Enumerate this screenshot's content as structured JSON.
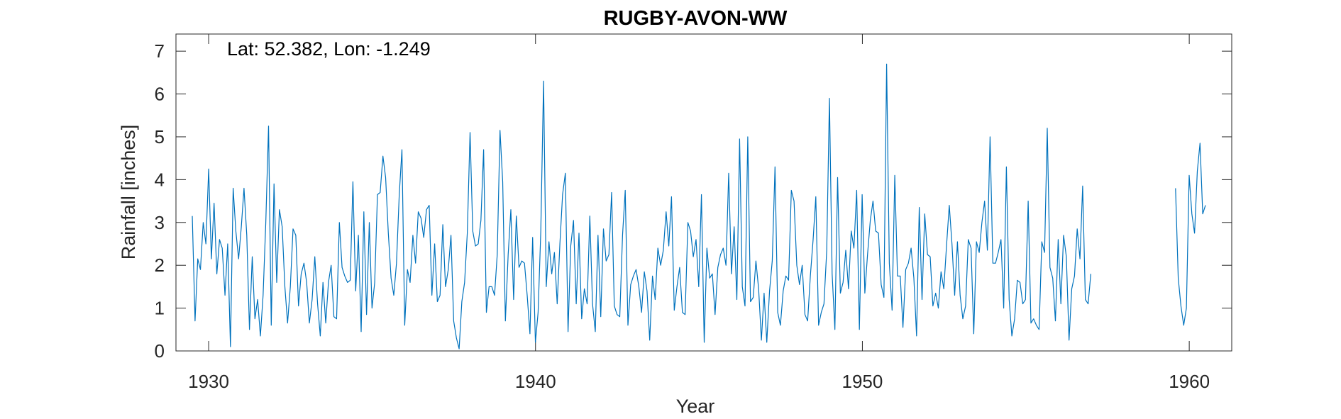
{
  "chart_data": {
    "type": "line",
    "title": "RUGBY-AVON-WW",
    "annotation": "Lat: 52.382, Lon: -1.249",
    "xlabel": "Year",
    "ylabel": "Rainfall [inches]",
    "xlim": [
      1929,
      1961.3
    ],
    "ylim": [
      0,
      7.4
    ],
    "x_ticks": [
      1930,
      1940,
      1950,
      1960
    ],
    "y_ticks": [
      0,
      1,
      2,
      3,
      4,
      5,
      6,
      7
    ],
    "grid": false,
    "line_color": "#0072BD",
    "series": [
      {
        "x_start": 1929.5,
        "x_step": 0.0833,
        "values": [
          3.15,
          0.7,
          2.15,
          1.9,
          3.0,
          2.5,
          4.25,
          2.15,
          3.45,
          1.8,
          2.6,
          2.4,
          1.3,
          2.5,
          0.1,
          3.8,
          2.8,
          2.15,
          2.9,
          3.8,
          2.7,
          0.5,
          2.2,
          0.75,
          1.2,
          0.35,
          1.3,
          3.0,
          5.25,
          0.6,
          3.9,
          1.6,
          3.3,
          2.9,
          1.5,
          0.65,
          1.5,
          2.85,
          2.7,
          1.05,
          1.8,
          2.05,
          1.6,
          0.65,
          1.2,
          2.2,
          1.1,
          0.35,
          1.6,
          0.65,
          1.6,
          2.0,
          0.8,
          0.75,
          3.0,
          1.95,
          1.75,
          1.6,
          1.65,
          3.95,
          1.4,
          2.7,
          0.45,
          3.25,
          0.85,
          3.0,
          1.0,
          1.6,
          3.65,
          3.7,
          4.55,
          4.05,
          2.75,
          1.7,
          1.3,
          2.05,
          3.65,
          4.7,
          0.6,
          1.9,
          1.6,
          2.7,
          2.05,
          3.25,
          3.1,
          2.65,
          3.3,
          3.4,
          1.3,
          2.5,
          1.15,
          1.3,
          2.95,
          1.5,
          1.9,
          2.7,
          0.7,
          0.3,
          0.05,
          1.15,
          1.6,
          2.75,
          5.1,
          2.8,
          2.45,
          2.5,
          3.05,
          4.7,
          0.9,
          1.5,
          1.5,
          1.3,
          2.25,
          5.15,
          3.95,
          0.7,
          2.25,
          3.3,
          1.2,
          3.15,
          1.95,
          2.1,
          2.05,
          1.3,
          0.4,
          2.65,
          0.2,
          0.9,
          2.8,
          6.3,
          1.5,
          2.55,
          1.8,
          2.3,
          1.1,
          2.5,
          3.65,
          4.15,
          0.45,
          2.45,
          3.05,
          1.1,
          2.75,
          0.75,
          1.45,
          1.1,
          3.15,
          1.1,
          0.45,
          2.7,
          0.8,
          2.85,
          2.1,
          2.25,
          3.7,
          1.05,
          0.85,
          0.8,
          2.7,
          3.75,
          0.6,
          1.55,
          1.75,
          1.9,
          1.5,
          0.9,
          1.85,
          1.4,
          0.25,
          1.75,
          1.2,
          2.4,
          2.0,
          2.35,
          3.25,
          2.45,
          3.6,
          0.95,
          1.5,
          1.95,
          0.9,
          0.85,
          3.0,
          2.8,
          2.2,
          2.6,
          1.5,
          3.65,
          0.2,
          2.4,
          1.7,
          1.8,
          0.85,
          1.95,
          2.25,
          2.4,
          2.0,
          4.15,
          1.8,
          2.9,
          1.2,
          4.95,
          1.5,
          1.05,
          5.0,
          1.15,
          1.25,
          2.1,
          1.45,
          0.25,
          1.35,
          0.2,
          1.4,
          2.1,
          4.3,
          0.9,
          0.6,
          1.4,
          1.75,
          1.65,
          3.75,
          3.5,
          2.0,
          1.55,
          2.0,
          0.85,
          0.7,
          1.75,
          2.6,
          3.6,
          0.6,
          0.9,
          1.1,
          2.35,
          5.9,
          1.8,
          0.5,
          4.05,
          1.35,
          1.6,
          2.35,
          1.45,
          2.8,
          2.4,
          3.75,
          0.5,
          3.65,
          1.35,
          2.25,
          3.05,
          3.5,
          2.8,
          2.75,
          1.55,
          1.25,
          6.7,
          2.05,
          0.95,
          4.1,
          1.75,
          1.75,
          0.55,
          1.9,
          2.05,
          2.4,
          1.7,
          0.35,
          3.35,
          1.2,
          3.2,
          2.25,
          2.2,
          1.05,
          1.35,
          1.0,
          1.85,
          1.45,
          2.45,
          3.4,
          2.5,
          1.3,
          2.55,
          1.3,
          0.75,
          1.05,
          2.6,
          2.4,
          0.4,
          2.55,
          2.3,
          3.0,
          3.5,
          2.35,
          5.0,
          2.05,
          2.05,
          2.3,
          2.6,
          1.0,
          4.3,
          1.2,
          0.35,
          0.75,
          1.65,
          1.6,
          1.1,
          1.2,
          3.5,
          0.65,
          0.75,
          0.6,
          0.5,
          2.55,
          2.3,
          5.2,
          1.95,
          1.7,
          0.7,
          2.6,
          1.1,
          2.7,
          2.2,
          0.25,
          1.45,
          1.75,
          2.85,
          2.15,
          3.85,
          1.2,
          1.1,
          1.8
        ]
      },
      {
        "x_start": 1959.58,
        "x_step": 0.0833,
        "values": [
          3.8,
          1.7,
          1.05,
          0.6,
          1.0,
          4.1,
          3.2,
          2.75,
          4.2,
          4.85,
          3.2,
          3.4
        ]
      }
    ]
  }
}
